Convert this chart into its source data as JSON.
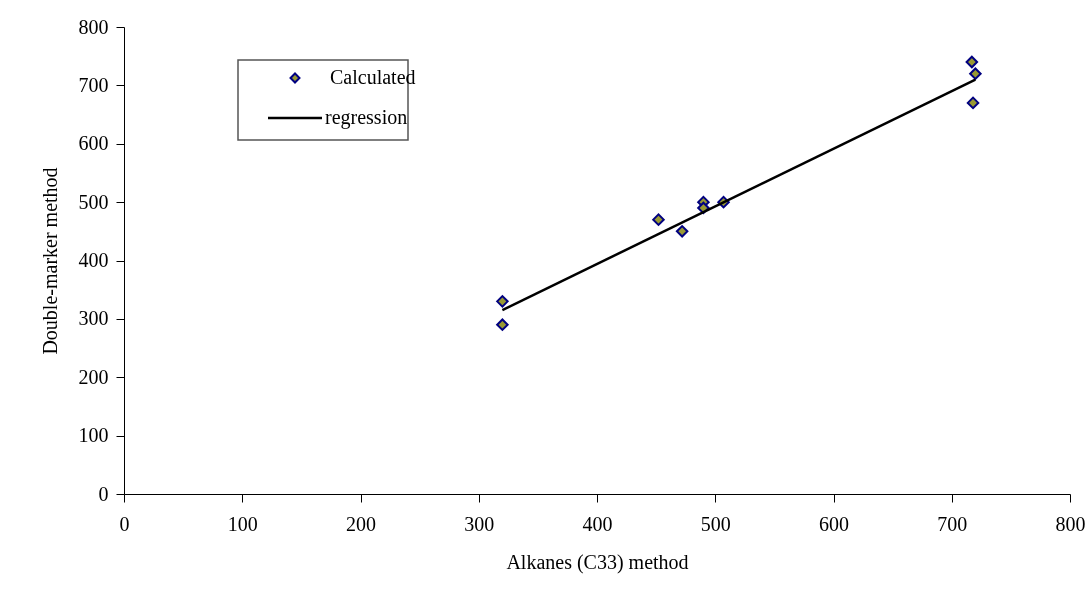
{
  "chart_data": {
    "type": "scatter",
    "xlabel": "Alkanes (C33) method",
    "ylabel": "Double-marker method",
    "xlim": [
      0,
      800
    ],
    "ylim": [
      0,
      800
    ],
    "xticks": [
      0,
      100,
      200,
      300,
      400,
      500,
      600,
      700,
      800
    ],
    "yticks": [
      0,
      100,
      200,
      300,
      400,
      500,
      600,
      700,
      800
    ],
    "grid": false,
    "legend": "top left",
    "series": [
      {
        "name": "Calculated",
        "marker": "diamond",
        "color": "#999933",
        "x": [
          320,
          320,
          452,
          472,
          490,
          490,
          507,
          717,
          720,
          718
        ],
        "values": [
          330,
          290,
          470,
          450,
          500,
          490,
          500,
          740,
          720,
          670
        ]
      },
      {
        "name": "regression",
        "type": "line",
        "color": "#000000",
        "line_style": "solid",
        "x": [
          320,
          720
        ],
        "values": [
          315,
          710
        ]
      }
    ]
  }
}
